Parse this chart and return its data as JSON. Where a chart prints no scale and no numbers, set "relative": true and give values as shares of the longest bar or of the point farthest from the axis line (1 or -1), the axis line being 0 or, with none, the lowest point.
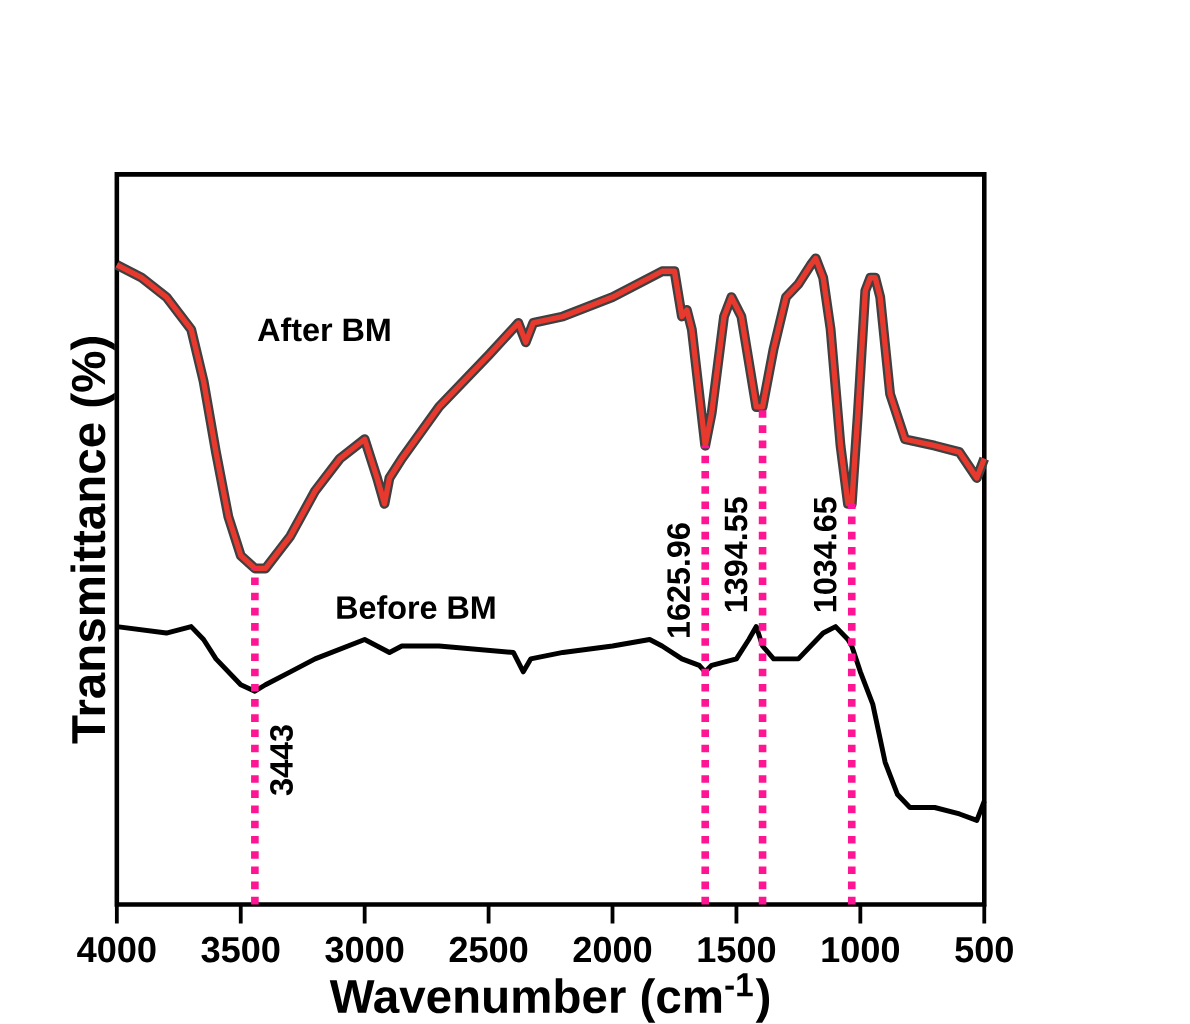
{
  "chart_data": {
    "type": "line",
    "relative": true,
    "xlabel": "Wavenumber (cm$^{-1}$)",
    "ylabel": "Transmittance (%)",
    "xlim": [
      4000,
      500
    ],
    "xticks": [
      4000,
      3500,
      3000,
      2500,
      2000,
      1500,
      1000,
      500
    ],
    "grid": false,
    "marker": "none",
    "line_style": "solid",
    "series": [
      {
        "name": "After BM",
        "color": "#e8392f",
        "x": [
          4000,
          3900,
          3800,
          3700,
          3650,
          3600,
          3550,
          3500,
          3443,
          3400,
          3300,
          3200,
          3100,
          3000,
          2950,
          2920,
          2900,
          2850,
          2700,
          2500,
          2380,
          2350,
          2320,
          2200,
          2000,
          1800,
          1750,
          1720,
          1700,
          1680,
          1650,
          1625.96,
          1600,
          1550,
          1520,
          1480,
          1450,
          1420,
          1394.55,
          1350,
          1300,
          1250,
          1200,
          1180,
          1150,
          1120,
          1080,
          1050,
          1034.65,
          1010,
          980,
          960,
          940,
          920,
          880,
          820,
          700,
          600,
          530,
          500
        ],
        "values": [
          0.99,
          0.97,
          0.94,
          0.89,
          0.81,
          0.7,
          0.6,
          0.54,
          0.52,
          0.52,
          0.57,
          0.64,
          0.69,
          0.72,
          0.66,
          0.62,
          0.66,
          0.69,
          0.77,
          0.85,
          0.9,
          0.87,
          0.9,
          0.91,
          0.94,
          0.98,
          0.98,
          0.91,
          0.92,
          0.89,
          0.79,
          0.71,
          0.76,
          0.91,
          0.94,
          0.91,
          0.84,
          0.77,
          0.77,
          0.86,
          0.94,
          0.96,
          0.99,
          1,
          0.97,
          0.89,
          0.71,
          0.62,
          0.62,
          0.76,
          0.95,
          0.97,
          0.97,
          0.94,
          0.79,
          0.72,
          0.71,
          0.7,
          0.66,
          0.69
        ]
      },
      {
        "name": "Before BM",
        "color": "#000000",
        "x": [
          4000,
          3800,
          3700,
          3650,
          3600,
          3500,
          3443,
          3400,
          3300,
          3200,
          3000,
          2950,
          2900,
          2850,
          2700,
          2400,
          2360,
          2330,
          2200,
          2000,
          1850,
          1800,
          1720,
          1650,
          1625.96,
          1600,
          1500,
          1450,
          1420,
          1394.55,
          1350,
          1250,
          1150,
          1100,
          1050,
          1034.65,
          1000,
          950,
          900,
          850,
          800,
          700,
          600,
          530,
          500
        ],
        "values": [
          0.43,
          0.42,
          0.43,
          0.41,
          0.38,
          0.34,
          0.33,
          0.34,
          0.36,
          0.38,
          0.41,
          0.4,
          0.39,
          0.4,
          0.4,
          0.39,
          0.36,
          0.38,
          0.39,
          0.4,
          0.41,
          0.4,
          0.38,
          0.37,
          0.36,
          0.37,
          0.38,
          0.41,
          0.43,
          0.4,
          0.38,
          0.38,
          0.42,
          0.43,
          0.41,
          0.4,
          0.36,
          0.31,
          0.22,
          0.17,
          0.15,
          0.15,
          0.14,
          0.13,
          0.16
        ]
      }
    ],
    "ref_lines": [
      {
        "axis": "x",
        "value": 3443,
        "label": "3443",
        "color": "#ff1493",
        "line_style": "dotted"
      },
      {
        "axis": "x",
        "value": 1625.96,
        "label": "1625.96",
        "color": "#ff1493",
        "line_style": "dotted"
      },
      {
        "axis": "x",
        "value": 1394.55,
        "label": "1394.55",
        "color": "#ff1493",
        "line_style": "dotted"
      },
      {
        "axis": "x",
        "value": 1034.65,
        "label": "1034.65",
        "color": "#ff1493",
        "line_style": "dotted"
      }
    ]
  }
}
